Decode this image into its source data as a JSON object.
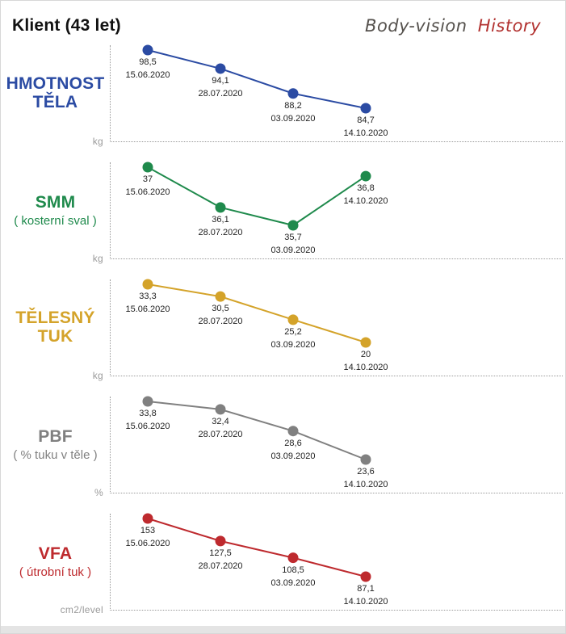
{
  "header": {
    "title": "Klient (43 let)",
    "brand": "Body-vision",
    "brand_suffix": "History"
  },
  "chart_data": [
    {
      "type": "line",
      "title": "HMOTNOST TĚLA",
      "subtitle": "",
      "unit": "kg",
      "color": "#2b4ba3",
      "x": [
        "15.06.2020",
        "28.07.2020",
        "03.09.2020",
        "14.10.2020"
      ],
      "values": [
        98.5,
        94.1,
        88.2,
        84.7
      ],
      "value_labels": [
        "98,5",
        "94,1",
        "88,2",
        "84,7"
      ],
      "legend": false,
      "grid": false
    },
    {
      "type": "line",
      "title": "SMM",
      "subtitle": "( kosterní sval )",
      "unit": "kg",
      "color": "#1f8a4c",
      "x": [
        "15.06.2020",
        "28.07.2020",
        "03.09.2020",
        "14.10.2020"
      ],
      "values": [
        37,
        36.1,
        35.7,
        36.8
      ],
      "value_labels": [
        "37",
        "36,1",
        "35,7",
        "36,8"
      ],
      "legend": false,
      "grid": false
    },
    {
      "type": "line",
      "title": "TĚLESNÝ TUK",
      "subtitle": "",
      "unit": "kg",
      "color": "#d4a32a",
      "x": [
        "15.06.2020",
        "28.07.2020",
        "03.09.2020",
        "14.10.2020"
      ],
      "values": [
        33.3,
        30.5,
        25.2,
        20
      ],
      "value_labels": [
        "33,3",
        "30,5",
        "25,2",
        "20"
      ],
      "legend": false,
      "grid": false
    },
    {
      "type": "line",
      "title": "PBF",
      "subtitle": "( % tuku v těle )",
      "unit": "%",
      "color": "#808080",
      "x": [
        "15.06.2020",
        "28.07.2020",
        "03.09.2020",
        "14.10.2020"
      ],
      "values": [
        33.8,
        32.4,
        28.6,
        23.6
      ],
      "value_labels": [
        "33,8",
        "32,4",
        "28,6",
        "23,6"
      ],
      "legend": false,
      "grid": false
    },
    {
      "type": "line",
      "title": "VFA",
      "subtitle": "( útrobní tuk )",
      "unit": "cm2/level",
      "color": "#be2a2e",
      "x": [
        "15.06.2020",
        "28.07.2020",
        "03.09.2020",
        "14.10.2020"
      ],
      "values": [
        153,
        127.5,
        108.5,
        87.1
      ],
      "value_labels": [
        "153",
        "127,5",
        "108,5",
        "87,1"
      ],
      "legend": false,
      "grid": false
    }
  ]
}
